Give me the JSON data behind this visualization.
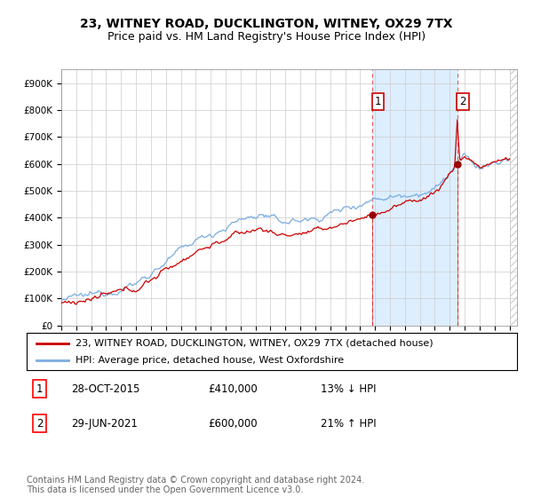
{
  "title": "23, WITNEY ROAD, DUCKLINGTON, WITNEY, OX29 7TX",
  "subtitle": "Price paid vs. HM Land Registry's House Price Index (HPI)",
  "ylabel_ticks": [
    "£0",
    "£100K",
    "£200K",
    "£300K",
    "£400K",
    "£500K",
    "£600K",
    "£700K",
    "£800K",
    "£900K"
  ],
  "ytick_vals": [
    0,
    100000,
    200000,
    300000,
    400000,
    500000,
    600000,
    700000,
    800000,
    900000
  ],
  "ylim": [
    0,
    950000
  ],
  "xlim_start": 1995.0,
  "xlim_end": 2025.5,
  "legend_line1": "23, WITNEY ROAD, DUCKLINGTON, WITNEY, OX29 7TX (detached house)",
  "legend_line2": "HPI: Average price, detached house, West Oxfordshire",
  "sale1_label": "1",
  "sale1_date": "28-OCT-2015",
  "sale1_price": "£410,000",
  "sale1_hpi": "13% ↓ HPI",
  "sale2_label": "2",
  "sale2_date": "29-JUN-2021",
  "sale2_price": "£600,000",
  "sale2_hpi": "21% ↑ HPI",
  "footer": "Contains HM Land Registry data © Crown copyright and database right 2024.\nThis data is licensed under the Open Government Licence v3.0.",
  "line_color_red": "#cc0000",
  "line_color_blue": "#7aade0",
  "shade_color": "#ddeeff",
  "vline_color": "#e06060",
  "sale1_x": 2015.83,
  "sale1_y": 410000,
  "sale2_x": 2021.5,
  "sale2_y": 600000,
  "title_fontsize": 10,
  "subtitle_fontsize": 9,
  "tick_fontsize": 7.5,
  "legend_fontsize": 8,
  "table_fontsize": 8.5,
  "footer_fontsize": 7
}
